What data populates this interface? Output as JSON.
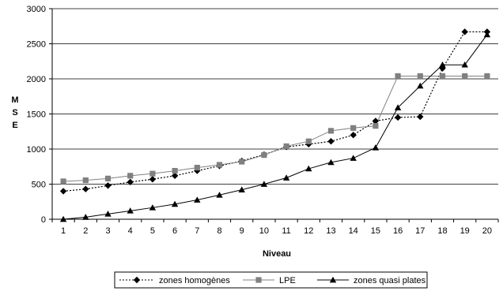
{
  "chart_data": {
    "type": "line",
    "title": "",
    "xlabel": "Niveau",
    "ylabel": "M S E",
    "ylabel_letters": [
      "M",
      "S",
      "E"
    ],
    "ylim": [
      0,
      3000
    ],
    "yticks": [
      0,
      500,
      1000,
      1500,
      2000,
      2500,
      3000
    ],
    "grid": true,
    "legend_position": "bottom",
    "x": [
      1,
      2,
      3,
      4,
      5,
      6,
      7,
      8,
      9,
      10,
      11,
      12,
      13,
      14,
      15,
      16,
      17,
      18,
      19,
      20
    ],
    "series": [
      {
        "name": "zones homogènes",
        "color": "#000000",
        "line_style": "dotted",
        "marker": "diamond",
        "values": [
          400,
          430,
          480,
          530,
          570,
          620,
          690,
          760,
          830,
          920,
          1030,
          1070,
          1110,
          1200,
          1400,
          1450,
          1460,
          2150,
          2670,
          2670
        ]
      },
      {
        "name": "LPE",
        "color": "#808080",
        "line_style": "solid",
        "marker": "square",
        "values": [
          540,
          555,
          580,
          620,
          650,
          690,
          735,
          775,
          820,
          915,
          1040,
          1110,
          1260,
          1300,
          1330,
          2040,
          2040,
          2040,
          2040,
          2040
        ]
      },
      {
        "name": "zones quasi plates",
        "color": "#000000",
        "line_style": "solid",
        "marker": "triangle",
        "values": [
          0,
          30,
          75,
          120,
          165,
          215,
          275,
          345,
          420,
          500,
          590,
          720,
          810,
          870,
          1020,
          1590,
          1900,
          2200,
          2200,
          2630
        ]
      }
    ]
  }
}
